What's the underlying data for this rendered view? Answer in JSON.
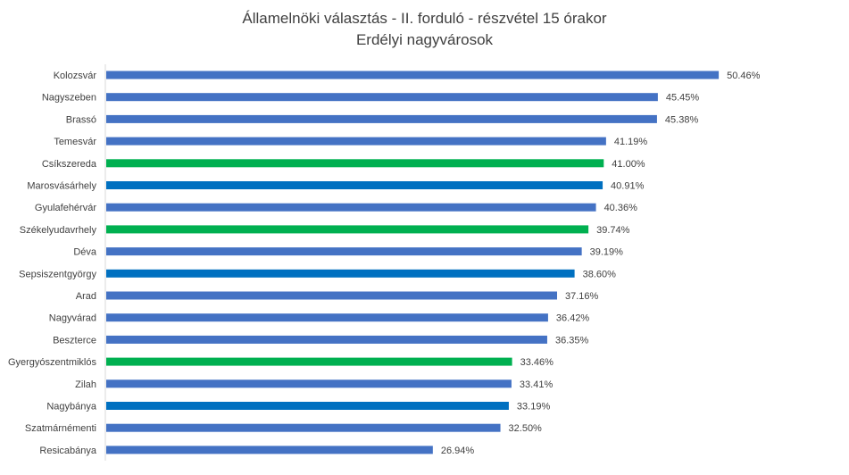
{
  "chart_data": {
    "type": "bar",
    "orientation": "horizontal",
    "title": "Államelnöki választás - II. forduló - részvétel 15 órakor",
    "subtitle": "Erdélyi nagyvárosok",
    "xlabel": "",
    "ylabel": "",
    "xlim": [
      0,
      60
    ],
    "grid": false,
    "legend": "none",
    "value_format": "percent",
    "colors": {
      "default": "#4472C4",
      "dark_blue": "#0070C0",
      "green": "#00B050",
      "axis": "#D9D9D9"
    },
    "categories": [
      "Kolozsvár",
      "Nagyszeben",
      "Brassó",
      "Temesvár",
      "Csíkszereda",
      "Marosvásárhely",
      "Gyulafehérvár",
      "Székelyudavrhely",
      "Déva",
      "Sepsiszentgyörgy",
      "Arad",
      "Nagyvárad",
      "Beszterce",
      "Gyergyószentmiklós",
      "Zilah",
      "Nagybánya",
      "Szatmárnémenti",
      "Resicabánya"
    ],
    "values": [
      50.46,
      45.45,
      45.38,
      41.19,
      41.0,
      40.91,
      40.36,
      39.74,
      39.19,
      38.6,
      37.16,
      36.42,
      36.35,
      33.46,
      33.41,
      33.19,
      32.5,
      26.94
    ],
    "data_labels": [
      "50.46%",
      "45.45%",
      "45.38%",
      "41.19%",
      "41.00%",
      "40.91%",
      "40.36%",
      "39.74%",
      "39.19%",
      "38.60%",
      "37.16%",
      "36.42%",
      "36.35%",
      "33.46%",
      "33.41%",
      "33.19%",
      "32.50%",
      "26.94%"
    ],
    "bar_colors": [
      "default",
      "default",
      "default",
      "default",
      "green",
      "dark_blue",
      "default",
      "green",
      "default",
      "dark_blue",
      "default",
      "default",
      "default",
      "green",
      "default",
      "dark_blue",
      "default",
      "default"
    ]
  }
}
